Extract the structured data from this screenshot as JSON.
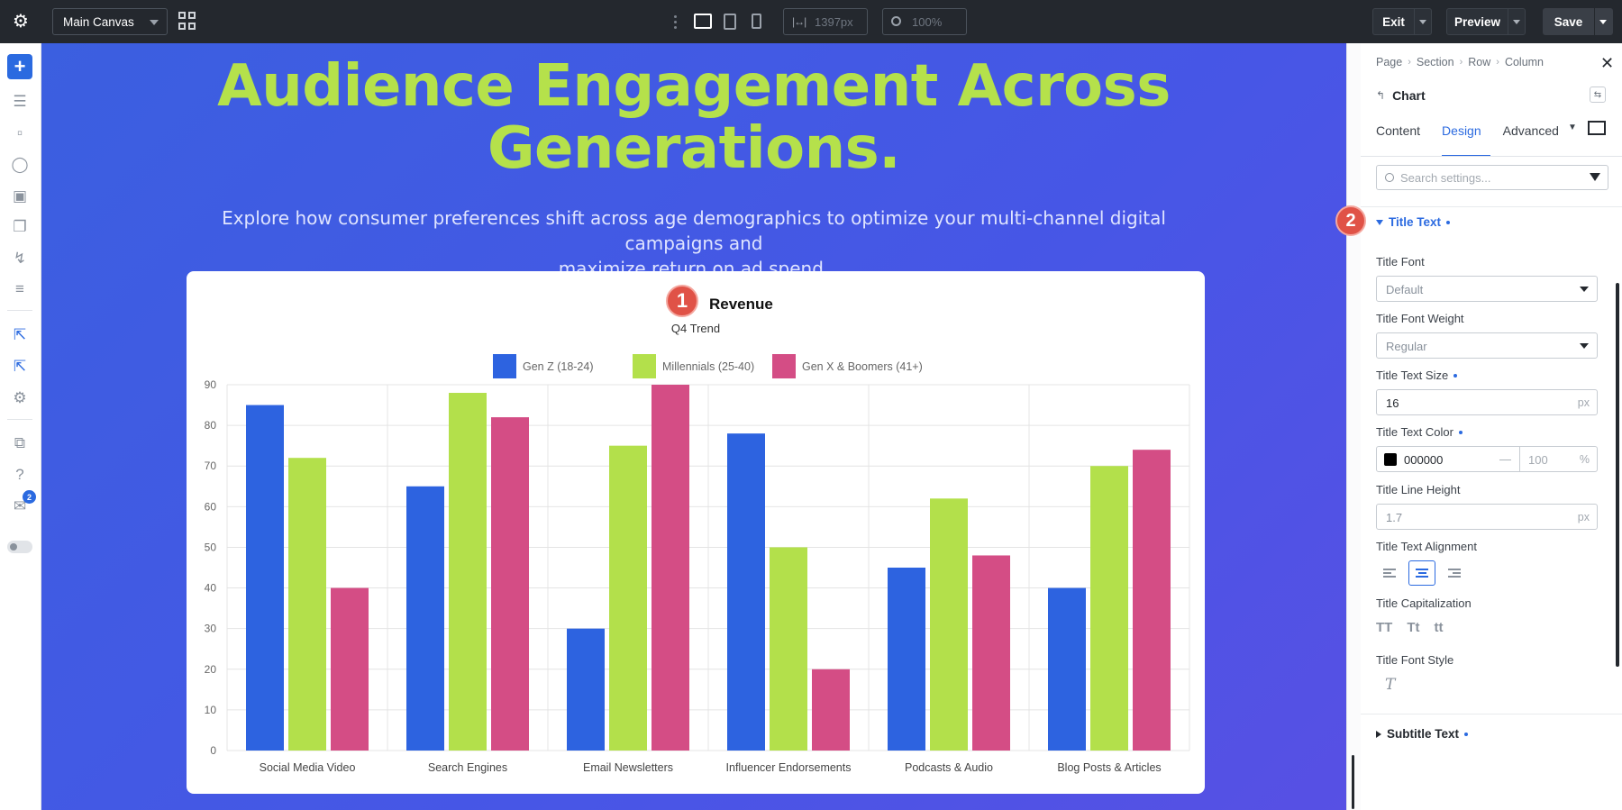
{
  "topbar": {
    "canvas_select": "Main Canvas",
    "width_value": "1397px",
    "zoom_value": "100%",
    "exit_label": "Exit",
    "preview_label": "Preview",
    "save_label": "Save"
  },
  "leftbar": {
    "notification_count": "2"
  },
  "canvas": {
    "headline_line1": "Audience Engagement Across",
    "headline_line2": "Generations.",
    "subhead_line1": "Explore how consumer preferences shift across age demographics to optimize your multi-channel digital campaigns and",
    "subhead_line2": "maximize return on ad spend.",
    "badge_1": "1"
  },
  "chart_data": {
    "type": "bar",
    "title": "Revenue",
    "subtitle": "Q4 Trend",
    "categories": [
      "Social Media Video",
      "Search Engines",
      "Email Newsletters",
      "Influencer Endorsements",
      "Podcasts & Audio",
      "Blog Posts & Articles"
    ],
    "series": [
      {
        "name": "Gen Z (18-24)",
        "color": "#2d63e0",
        "values": [
          85,
          65,
          30,
          78,
          45,
          40
        ]
      },
      {
        "name": "Millennials (25-40)",
        "color": "#b3e04b",
        "values": [
          72,
          88,
          75,
          50,
          62,
          70
        ]
      },
      {
        "name": "Gen X & Boomers (41+)",
        "color": "#d44d85",
        "values": [
          40,
          82,
          90,
          20,
          48,
          74
        ]
      }
    ],
    "ylim": [
      0,
      90
    ],
    "yticks": [
      0,
      10,
      20,
      30,
      40,
      50,
      60,
      70,
      80,
      90
    ],
    "legend_position": "top-center",
    "grid": true
  },
  "panel": {
    "breadcrumb": [
      "Page",
      "Section",
      "Row",
      "Column"
    ],
    "module_name": "Chart",
    "tabs": [
      "Content",
      "Design",
      "Advanced"
    ],
    "active_tab": "Design",
    "search_placeholder": "Search settings...",
    "badge_2": "2",
    "section_title": "Title Text",
    "fields": {
      "title_font_label": "Title Font",
      "title_font_value": "Default",
      "title_font_weight_label": "Title Font Weight",
      "title_font_weight_value": "Regular",
      "title_text_size_label": "Title Text Size",
      "title_text_size_value": "16",
      "title_text_size_unit": "px",
      "title_text_color_label": "Title Text Color",
      "title_text_color_value": "000000",
      "title_text_color_swatch": "#000000",
      "title_text_opacity": "100",
      "title_text_opacity_unit": "%",
      "title_line_height_label": "Title Line Height",
      "title_line_height_value": "1.7",
      "title_line_height_unit": "px",
      "title_text_alignment_label": "Title Text Alignment",
      "title_capitalization_label": "Title Capitalization",
      "cap_options": [
        "TT",
        "Tt",
        "tt"
      ],
      "title_font_style_label": "Title Font Style",
      "font_style_icon": "T"
    },
    "next_section_title": "Subtitle Text"
  },
  "colors": {
    "accent": "#2b6ae0",
    "headline": "#b5e14b",
    "badge": "#e05247"
  }
}
